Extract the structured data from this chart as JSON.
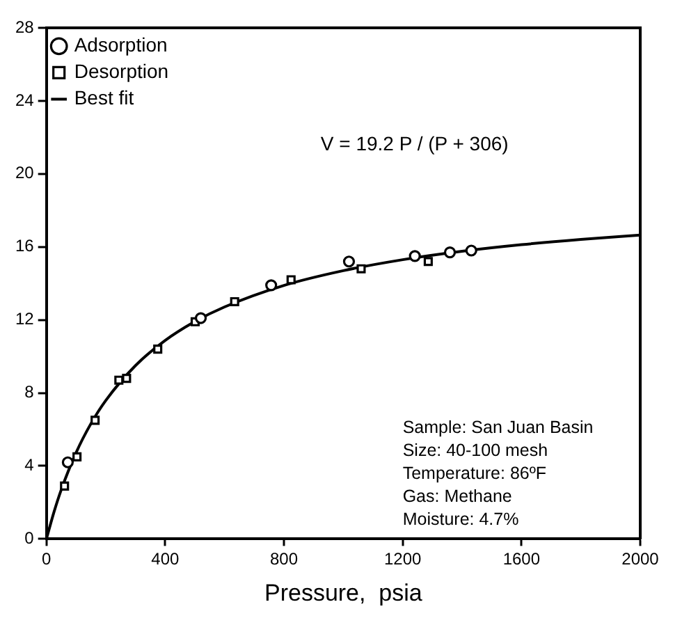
{
  "chart_data": {
    "type": "scatter",
    "xlabel": "Pressure,  psia",
    "xlim": [
      0,
      2000
    ],
    "xticks": [
      0,
      400,
      800,
      1200,
      1600,
      2000
    ],
    "ylim": [
      0,
      28
    ],
    "yticks": [
      0,
      4,
      8,
      12,
      16,
      20,
      24,
      28
    ],
    "grid": false,
    "legend": "top left",
    "series": [
      {
        "name": "Adsorption",
        "marker": "circle",
        "color": "#000000",
        "x": [
          72,
          520,
          757,
          1019,
          1241,
          1359,
          1431
        ],
        "values": [
          4.2,
          12.1,
          13.9,
          15.2,
          15.5,
          15.7,
          15.8
        ]
      },
      {
        "name": "Desorption",
        "marker": "square",
        "color": "#000000",
        "x": [
          61,
          103,
          164,
          244,
          270,
          375,
          501,
          634,
          824,
          1060,
          1286
        ],
        "values": [
          2.9,
          4.5,
          6.5,
          8.7,
          8.8,
          10.4,
          11.9,
          13.0,
          14.2,
          14.8,
          15.2
        ]
      },
      {
        "name": "Best fit",
        "type": "line",
        "marker": "none",
        "line_style": "solid",
        "color": "#000000",
        "x": [
          0,
          25,
          50,
          100,
          150,
          200,
          300,
          400,
          500,
          600,
          800,
          1000,
          1200,
          1400,
          1600,
          1800,
          2000
        ],
        "values": [
          0,
          1.45,
          2.7,
          4.73,
          6.32,
          7.59,
          9.5,
          10.88,
          11.91,
          12.71,
          13.89,
          14.7,
          15.3,
          15.76,
          16.12,
          16.41,
          16.65
        ]
      }
    ],
    "annotations": [
      "V = 19.2 P / (P + 306)",
      "Sample: San Juan Basin",
      "Size: 40-100 mesh",
      "Temperature: 86ºF",
      "Gas: Methane",
      "Moisture: 4.7%"
    ]
  }
}
